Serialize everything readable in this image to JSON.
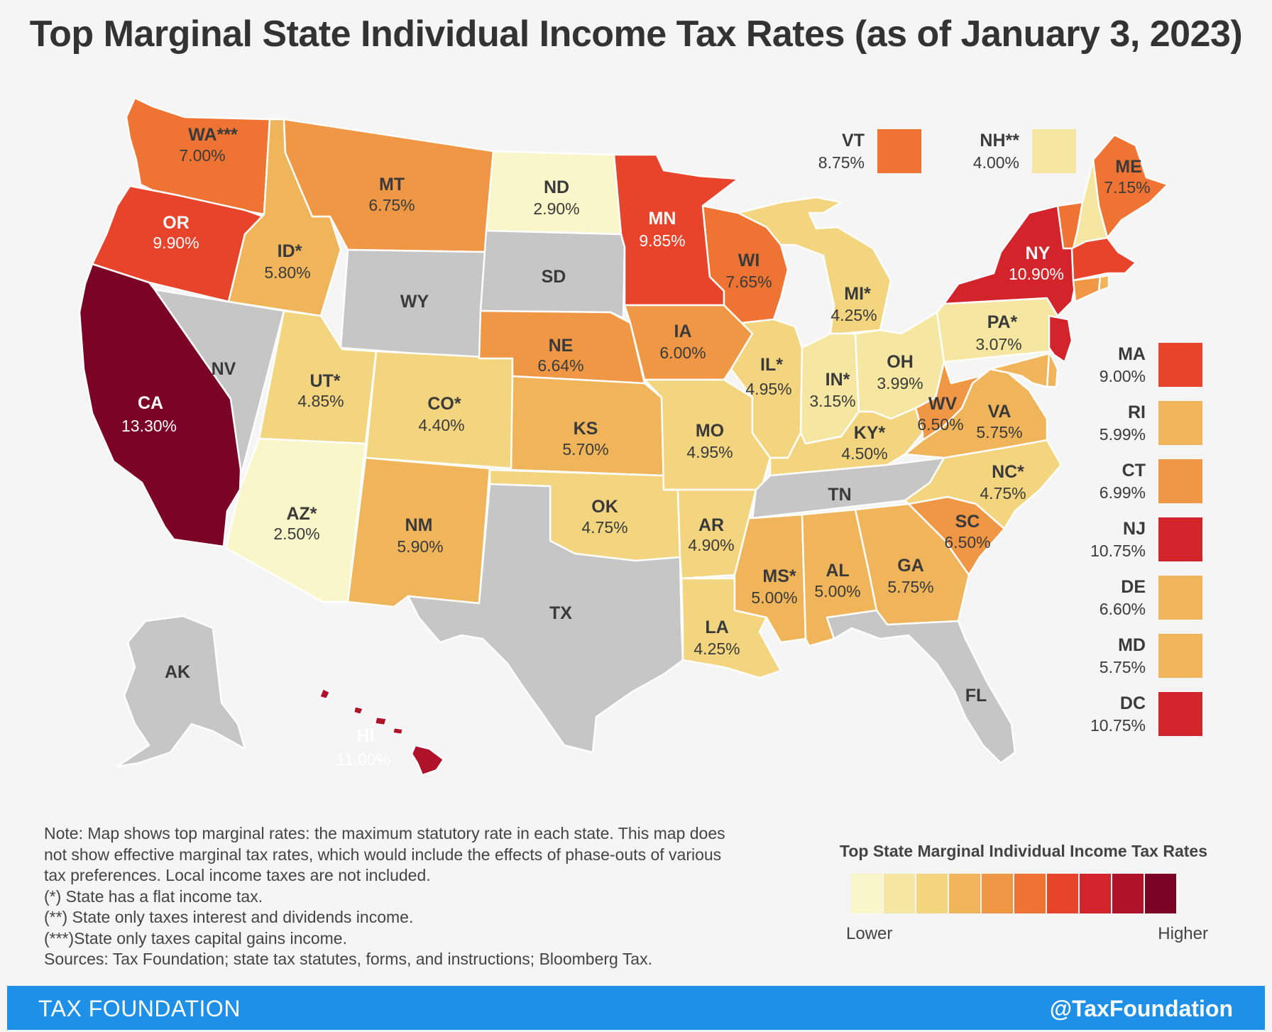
{
  "title": "Top Marginal State Individual Income Tax Rates (as of January 3, 2023)",
  "colors": {
    "scale": [
      "#f9f6c9",
      "#f5e6a1",
      "#f3d580",
      "#f0b55a",
      "#f09745",
      "#ef7433",
      "#e8432b",
      "#d2242a",
      "#b01229",
      "#7a0326"
    ],
    "no_tax": "#c6c6c6",
    "border": "#ffffff",
    "footer": "#1e90e8"
  },
  "states": {
    "WA": {
      "label": "WA***",
      "rate": "7.00%"
    },
    "OR": {
      "label": "OR",
      "rate": "9.90%"
    },
    "CA": {
      "label": "CA",
      "rate": "13.30%"
    },
    "NV": {
      "label": "NV",
      "rate": ""
    },
    "ID": {
      "label": "ID*",
      "rate": "5.80%"
    },
    "MT": {
      "label": "MT",
      "rate": "6.75%"
    },
    "WY": {
      "label": "WY",
      "rate": ""
    },
    "UT": {
      "label": "UT*",
      "rate": "4.85%"
    },
    "AZ": {
      "label": "AZ*",
      "rate": "2.50%"
    },
    "CO": {
      "label": "CO*",
      "rate": "4.40%"
    },
    "NM": {
      "label": "NM",
      "rate": "5.90%"
    },
    "ND": {
      "label": "ND",
      "rate": "2.90%"
    },
    "SD": {
      "label": "SD",
      "rate": ""
    },
    "NE": {
      "label": "NE",
      "rate": "6.64%"
    },
    "KS": {
      "label": "KS",
      "rate": "5.70%"
    },
    "OK": {
      "label": "OK",
      "rate": "4.75%"
    },
    "TX": {
      "label": "TX",
      "rate": ""
    },
    "MN": {
      "label": "MN",
      "rate": "9.85%"
    },
    "IA": {
      "label": "IA",
      "rate": "6.00%"
    },
    "MO": {
      "label": "MO",
      "rate": "4.95%"
    },
    "AR": {
      "label": "AR",
      "rate": "4.90%"
    },
    "LA": {
      "label": "LA",
      "rate": "4.25%"
    },
    "WI": {
      "label": "WI",
      "rate": "7.65%"
    },
    "IL": {
      "label": "IL*",
      "rate": "4.95%"
    },
    "MI": {
      "label": "MI*",
      "rate": "4.25%"
    },
    "IN": {
      "label": "IN*",
      "rate": "3.15%"
    },
    "OH": {
      "label": "OH",
      "rate": "3.99%"
    },
    "KY": {
      "label": "KY*",
      "rate": "4.50%"
    },
    "TN": {
      "label": "TN",
      "rate": ""
    },
    "MS": {
      "label": "MS*",
      "rate": "5.00%"
    },
    "AL": {
      "label": "AL",
      "rate": "5.00%"
    },
    "GA": {
      "label": "GA",
      "rate": "5.75%"
    },
    "FL": {
      "label": "FL",
      "rate": ""
    },
    "SC": {
      "label": "SC",
      "rate": "6.50%"
    },
    "NC": {
      "label": "NC*",
      "rate": "4.75%"
    },
    "VA": {
      "label": "VA",
      "rate": "5.75%"
    },
    "WV": {
      "label": "WV",
      "rate": "6.50%"
    },
    "PA": {
      "label": "PA*",
      "rate": "3.07%"
    },
    "NY": {
      "label": "NY",
      "rate": "10.90%"
    },
    "ME": {
      "label": "ME",
      "rate": "7.15%"
    },
    "AK": {
      "label": "AK",
      "rate": ""
    },
    "HI": {
      "label": "HI",
      "rate": "11.00%"
    }
  },
  "small_states": [
    {
      "label": "VT",
      "rate": "8.75%",
      "color": "#ef7433"
    },
    {
      "label": "NH**",
      "rate": "4.00%",
      "color": "#f5e6a1"
    },
    {
      "label": "MA",
      "rate": "9.00%",
      "color": "#e8432b"
    },
    {
      "label": "RI",
      "rate": "5.99%",
      "color": "#f0b55a"
    },
    {
      "label": "CT",
      "rate": "6.99%",
      "color": "#f09745"
    },
    {
      "label": "NJ",
      "rate": "10.75%",
      "color": "#d2242a"
    },
    {
      "label": "DE",
      "rate": "6.60%",
      "color": "#f0b55a"
    },
    {
      "label": "MD",
      "rate": "5.75%",
      "color": "#f0b55a"
    },
    {
      "label": "DC",
      "rate": "10.75%",
      "color": "#d2242a"
    }
  ],
  "notes": [
    "Note: Map shows top marginal rates: the maximum statutory rate in each state. This map does",
    "not show effective marginal tax rates, which would include the effects of phase-outs of various",
    "tax preferences. Local income taxes are not included.",
    "(*) State has a flat income tax.",
    "(**) State only taxes interest and dividends income.",
    "(***)State only taxes capital gains income.",
    "Sources: Tax Foundation; state tax statutes, forms, and instructions; Bloomberg Tax."
  ],
  "legend": {
    "title": "Top State Marginal Individual Income Tax Rates",
    "low": "Lower",
    "high": "Higher"
  },
  "footer": {
    "brand": "TAX FOUNDATION",
    "handle": "@TaxFoundation"
  }
}
